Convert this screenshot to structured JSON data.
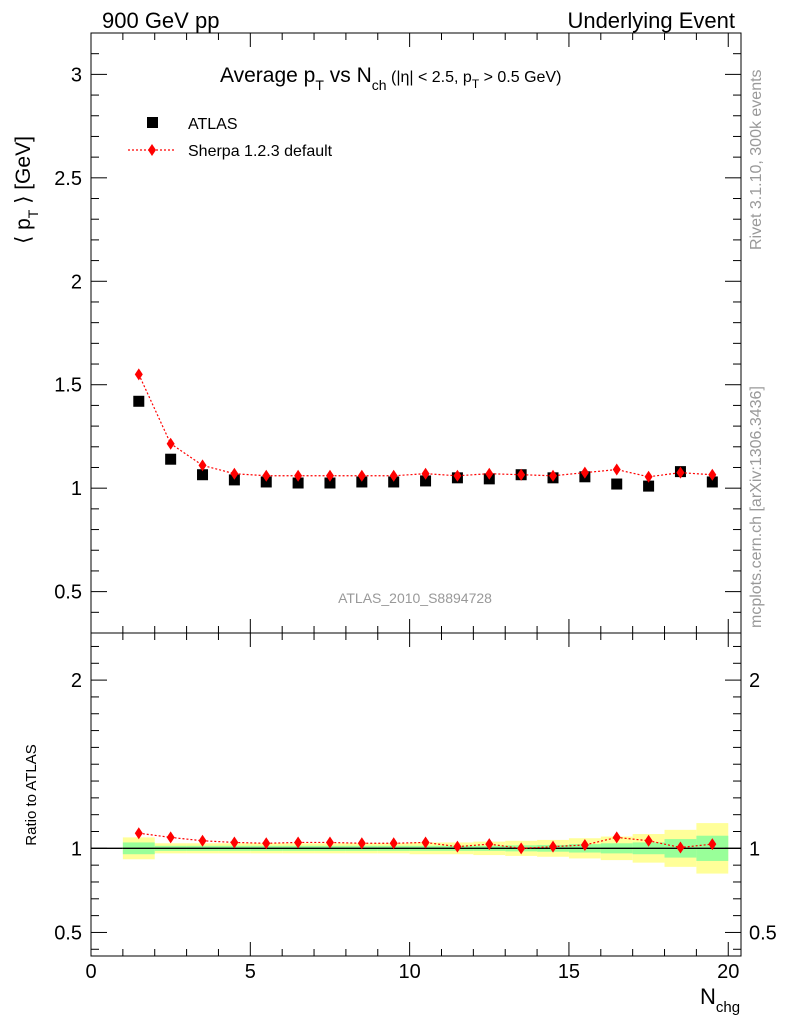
{
  "header": {
    "left": "900 GeV pp",
    "right": "Underlying Event"
  },
  "title": {
    "text_pre": "Average p",
    "text_pre_sub": "T",
    "text_mid": " vs N",
    "text_mid_sub": "ch",
    "cut1": " (|η| < 2.5, p",
    "cut1_sub": "T",
    "cut2": " > 0.5 GeV)"
  },
  "side_labels": {
    "rivet": "Rivet 3.1.10,  300k events",
    "mcplots": "mcplots.cern.ch [arXiv:1306.3436]"
  },
  "analysis_id": "ATLAS_2010_S8894728",
  "colors": {
    "data": "#000000",
    "mc": "#ff0000",
    "band_inner": "#99ff99",
    "band_outer": "#ffff99",
    "side_text": "#999999"
  },
  "chart_data": [
    {
      "type": "scatter",
      "panel": "main",
      "ylabel_pre": "⟨ p",
      "ylabel_sub": "T",
      "ylabel_post": " ⟩ [GeV]",
      "xlim": [
        0,
        20.4
      ],
      "ylim": [
        0.3,
        3.2
      ],
      "yticks": [
        0.5,
        1,
        1.5,
        2,
        2.5,
        3
      ],
      "ytick_labels": [
        "0.5",
        "1",
        "1.5",
        "2",
        "2.5",
        "3"
      ],
      "legend_position": "top-left",
      "series": [
        {
          "name": "ATLAS",
          "marker": "square",
          "x": [
            1.5,
            2.5,
            3.5,
            4.5,
            5.5,
            6.5,
            7.5,
            8.5,
            9.5,
            10.5,
            11.5,
            12.5,
            13.5,
            14.5,
            15.5,
            16.5,
            17.5,
            18.5,
            19.5
          ],
          "y": [
            1.42,
            1.14,
            1.065,
            1.04,
            1.03,
            1.025,
            1.025,
            1.03,
            1.03,
            1.035,
            1.05,
            1.045,
            1.065,
            1.05,
            1.055,
            1.02,
            1.01,
            1.08,
            1.03
          ]
        },
        {
          "name": "Sherpa 1.2.3 default",
          "marker": "diamond",
          "line": "dotted",
          "x": [
            1.5,
            2.5,
            3.5,
            4.5,
            5.5,
            6.5,
            7.5,
            8.5,
            9.5,
            10.5,
            11.5,
            12.5,
            13.5,
            14.5,
            15.5,
            16.5,
            17.5,
            18.5,
            19.5
          ],
          "y": [
            1.55,
            1.215,
            1.11,
            1.07,
            1.06,
            1.06,
            1.06,
            1.06,
            1.06,
            1.07,
            1.06,
            1.07,
            1.065,
            1.06,
            1.075,
            1.09,
            1.055,
            1.075,
            1.065
          ]
        }
      ]
    },
    {
      "type": "scatter",
      "panel": "ratio",
      "ylabel": "Ratio to ATLAS",
      "xlabel_main": "N",
      "xlabel_sub": "chg",
      "xlim": [
        0,
        20.4
      ],
      "ylim": [
        0.36,
        2.28
      ],
      "yticks": [
        0.5,
        1,
        2
      ],
      "ytick_labels": [
        "0.5",
        "1",
        "2"
      ],
      "xticks": [
        0,
        5,
        10,
        15,
        20
      ],
      "xtick_labels": [
        "0",
        "5",
        "10",
        "15",
        "20"
      ],
      "band_bins": [
        [
          1,
          2
        ],
        [
          2,
          3
        ],
        [
          3,
          4
        ],
        [
          4,
          5
        ],
        [
          5,
          6
        ],
        [
          6,
          7
        ],
        [
          7,
          8
        ],
        [
          8,
          9
        ],
        [
          9,
          10
        ],
        [
          10,
          11
        ],
        [
          11,
          12
        ],
        [
          12,
          13
        ],
        [
          13,
          14
        ],
        [
          14,
          15
        ],
        [
          15,
          16
        ],
        [
          16,
          17
        ],
        [
          17,
          18
        ],
        [
          18,
          19
        ],
        [
          19,
          20
        ]
      ],
      "band_inner_halfwidth": [
        0.035,
        0.015,
        0.015,
        0.015,
        0.015,
        0.015,
        0.015,
        0.015,
        0.015,
        0.015,
        0.015,
        0.015,
        0.018,
        0.02,
        0.025,
        0.03,
        0.035,
        0.055,
        0.075
      ],
      "band_outer_halfwidth": [
        0.065,
        0.03,
        0.03,
        0.03,
        0.03,
        0.03,
        0.03,
        0.03,
        0.03,
        0.035,
        0.035,
        0.04,
        0.045,
        0.05,
        0.06,
        0.07,
        0.085,
        0.11,
        0.15
      ],
      "series": [
        {
          "name": "Sherpa 1.2.3 default",
          "x": [
            1.5,
            2.5,
            3.5,
            4.5,
            5.5,
            6.5,
            7.5,
            8.5,
            9.5,
            10.5,
            11.5,
            12.5,
            13.5,
            14.5,
            15.5,
            16.5,
            17.5,
            18.5,
            19.5
          ],
          "y": [
            1.09,
            1.065,
            1.045,
            1.035,
            1.03,
            1.035,
            1.035,
            1.03,
            1.03,
            1.035,
            1.01,
            1.025,
            1.0,
            1.01,
            1.02,
            1.065,
            1.045,
            1.005,
            1.025
          ]
        }
      ]
    }
  ]
}
